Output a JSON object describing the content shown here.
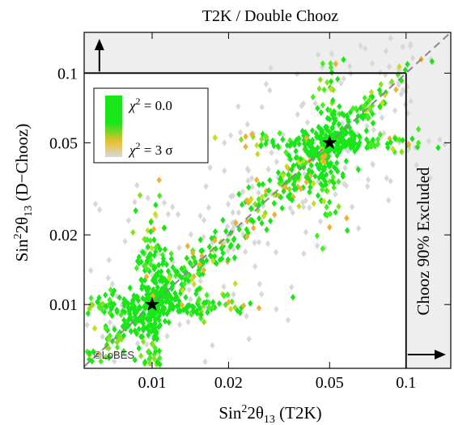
{
  "chart_data": {
    "type": "scatter",
    "title": "T2K / Double Chooz",
    "xlabel_base": "Sin",
    "xlabel_exp": "2",
    "xlabel_mid": "2θ",
    "xlabel_sub": "13",
    "xlabel_tail": " (T2K)",
    "ylabel_base": "Sin",
    "ylabel_exp": "2",
    "ylabel_mid": "2θ",
    "ylabel_sub": "13",
    "ylabel_tail": " (D−Chooz)",
    "x_scale": "log",
    "y_scale": "log",
    "xlim": [
      0.0054,
      0.15
    ],
    "ylim": [
      0.0053,
      0.15
    ],
    "x_ticks": [
      {
        "value": 0.01,
        "label": "0.01"
      },
      {
        "value": 0.02,
        "label": "0.02"
      },
      {
        "value": 0.05,
        "label": "0.05"
      },
      {
        "value": 0.1,
        "label": "0.1"
      }
    ],
    "y_ticks": [
      {
        "value": 0.01,
        "label": "0.01"
      },
      {
        "value": 0.02,
        "label": "0.02"
      },
      {
        "value": 0.05,
        "label": "0.05"
      },
      {
        "value": 0.1,
        "label": "0.1"
      }
    ],
    "legend": {
      "position": "top-left",
      "top_label_chi": "χ",
      "top_label_exp": "2",
      "top_label_rest": " = 0.0",
      "bottom_label_chi": "χ",
      "bottom_label_exp": "2",
      "bottom_label_rest": " = 3 σ"
    },
    "exclusion_label": "Chooz 90% Excluded",
    "chooz_limit": 0.1,
    "diagonal_line": "x = y (dashed)",
    "true_points": [
      {
        "x": 0.01,
        "y": 0.01
      },
      {
        "x": 0.05,
        "y": 0.05
      }
    ],
    "scatter_clusters": [
      {
        "center_x": 0.01,
        "center_y": 0.01,
        "color_scale": "chi2 0 (green) to 3 sigma (gray)"
      },
      {
        "center_x": 0.05,
        "center_y": 0.05,
        "color_scale": "chi2 0 (green) to 3 sigma (gray)"
      }
    ],
    "watermark": "©LoBES"
  },
  "colors": {
    "chi2_zero": "#19e619",
    "chi2_mid": "#c8dc20",
    "chi2_orange": "#f0b030",
    "chi2_3sigma": "#d8d8d8",
    "excluded_region": "#eeeeee",
    "diagonal": "#888888"
  }
}
